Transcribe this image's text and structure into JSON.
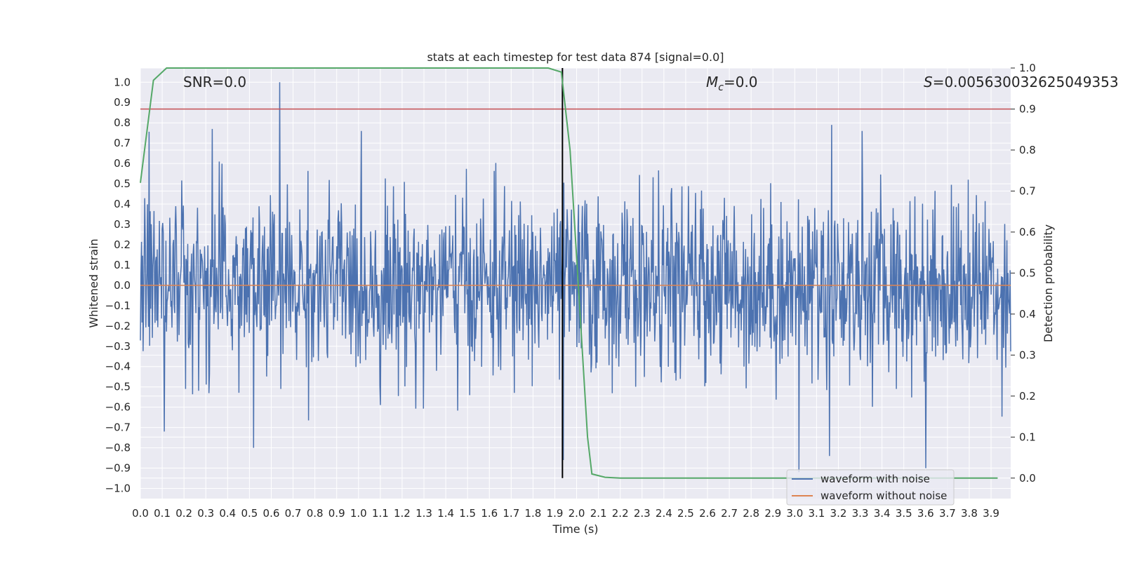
{
  "chart_data": {
    "type": "line",
    "title": "stats at each timestep for test data 874 [signal=0.0]",
    "xlabel": "Time (s)",
    "ylabel": "Whitened strain",
    "y2label": "Detection probability",
    "xlim": [
      0.0,
      3.99
    ],
    "ylim": [
      -1.05,
      1.07
    ],
    "y2lim": [
      -0.05,
      1.0
    ],
    "x_ticks": [
      0.0,
      0.1,
      0.2,
      0.3,
      0.4,
      0.5,
      0.6,
      0.7,
      0.8,
      0.9,
      1.0,
      1.1,
      1.2,
      1.3,
      1.4,
      1.5,
      1.6,
      1.7,
      1.8,
      1.9,
      2.0,
      2.1,
      2.2,
      2.3,
      2.4,
      2.5,
      2.6,
      2.7,
      2.8,
      2.9,
      3.0,
      3.1,
      3.2,
      3.3,
      3.4,
      3.5,
      3.6,
      3.7,
      3.8,
      3.9
    ],
    "x_tick_labels": [
      "0.0",
      "0.1",
      "0.2",
      "0.3",
      "0.4",
      "0.5",
      "0.6",
      "0.7",
      "0.8",
      "0.9",
      "1.0",
      "1.1",
      "1.2",
      "1.3",
      "1.4",
      "1.5",
      "1.6",
      "1.7",
      "1.8",
      "1.9",
      "2.0",
      "2.1",
      "2.2",
      "2.3",
      "2.4",
      "2.5",
      "2.6",
      "2.7",
      "2.8",
      "2.9",
      "3.0",
      "3.1",
      "3.2",
      "3.3",
      "3.4",
      "3.5",
      "3.6",
      "3.7",
      "3.8",
      "3.9"
    ],
    "y_ticks": [
      1.0,
      0.9,
      0.8,
      0.7,
      0.6,
      0.5,
      0.4,
      0.3,
      0.2,
      0.1,
      0.0,
      -0.1,
      -0.2,
      -0.3,
      -0.4,
      -0.5,
      -0.6,
      -0.7,
      -0.8,
      -0.9,
      -1.0
    ],
    "y_tick_labels": [
      "1.0",
      "0.9",
      "0.8",
      "0.7",
      "0.6",
      "0.5",
      "0.4",
      "0.3",
      "0.2",
      "0.1",
      "0.0",
      "−0.1",
      "−0.2",
      "−0.3",
      "−0.4",
      "−0.5",
      "−0.6",
      "−0.7",
      "−0.8",
      "−0.9",
      "−1.0"
    ],
    "y2_ticks": [
      1.0,
      0.9,
      0.8,
      0.7,
      0.6,
      0.5,
      0.4,
      0.3,
      0.2,
      0.1,
      0.0
    ],
    "y2_tick_labels": [
      "1.0",
      "0.9",
      "0.8",
      "0.7",
      "0.6",
      "0.5",
      "0.4",
      "0.3",
      "0.2",
      "0.1",
      "0.0"
    ],
    "annotations": {
      "snr": "SNR=0.0",
      "mc_symbol": "M",
      "mc_sub": "c",
      "mc_value": "=0.0",
      "s_symbol": "S",
      "s_value": "=0.005630032625049353"
    },
    "series": [
      {
        "name": "waveform with noise",
        "color": "#4c72b0",
        "noise": {
          "x_start": 0.0,
          "x_end": 3.99,
          "samples": 1600,
          "typical_amplitude": 0.4,
          "max_abs": 0.95
        },
        "spikes": [
          [
            0.64,
            1.0
          ],
          [
            3.02,
            -0.92
          ],
          [
            1.94,
            -0.86
          ],
          [
            3.6,
            -0.9
          ],
          [
            3.16,
            -0.84
          ],
          [
            0.52,
            -0.8
          ],
          [
            0.11,
            -0.72
          ],
          [
            0.33,
            0.77
          ],
          [
            3.17,
            0.79
          ],
          [
            3.31,
            0.76
          ]
        ]
      },
      {
        "name": "waveform without noise",
        "color": "#dd8452",
        "x": [
          0.0,
          3.99
        ],
        "y": [
          0.0,
          0.0
        ]
      },
      {
        "name": "detection probability",
        "color": "#55a868",
        "axis": "right",
        "x": [
          0.0,
          0.06,
          0.12,
          0.2,
          1.0,
          1.87,
          1.93,
          1.97,
          2.01,
          2.05,
          2.07,
          2.13,
          2.2,
          3.93
        ],
        "y": [
          0.72,
          0.97,
          1.0,
          1.0,
          1.0,
          1.0,
          0.99,
          0.8,
          0.45,
          0.1,
          0.01,
          0.002,
          0.0,
          0.0
        ]
      }
    ],
    "threshold_line": {
      "y2": 0.9,
      "color": "#c44e52"
    },
    "marker_line": {
      "x": 1.935,
      "y2_from": 0.0,
      "y2_to": 1.0,
      "color": "#000000"
    },
    "legend": {
      "placement": "lower-right",
      "entries": [
        {
          "label": "waveform with noise",
          "color": "#4c72b0"
        },
        {
          "label": "waveform without noise",
          "color": "#dd8452"
        }
      ]
    },
    "style": {
      "plot_background": "#eaeaf2",
      "grid_color": "#ffffff",
      "grid": true
    }
  }
}
